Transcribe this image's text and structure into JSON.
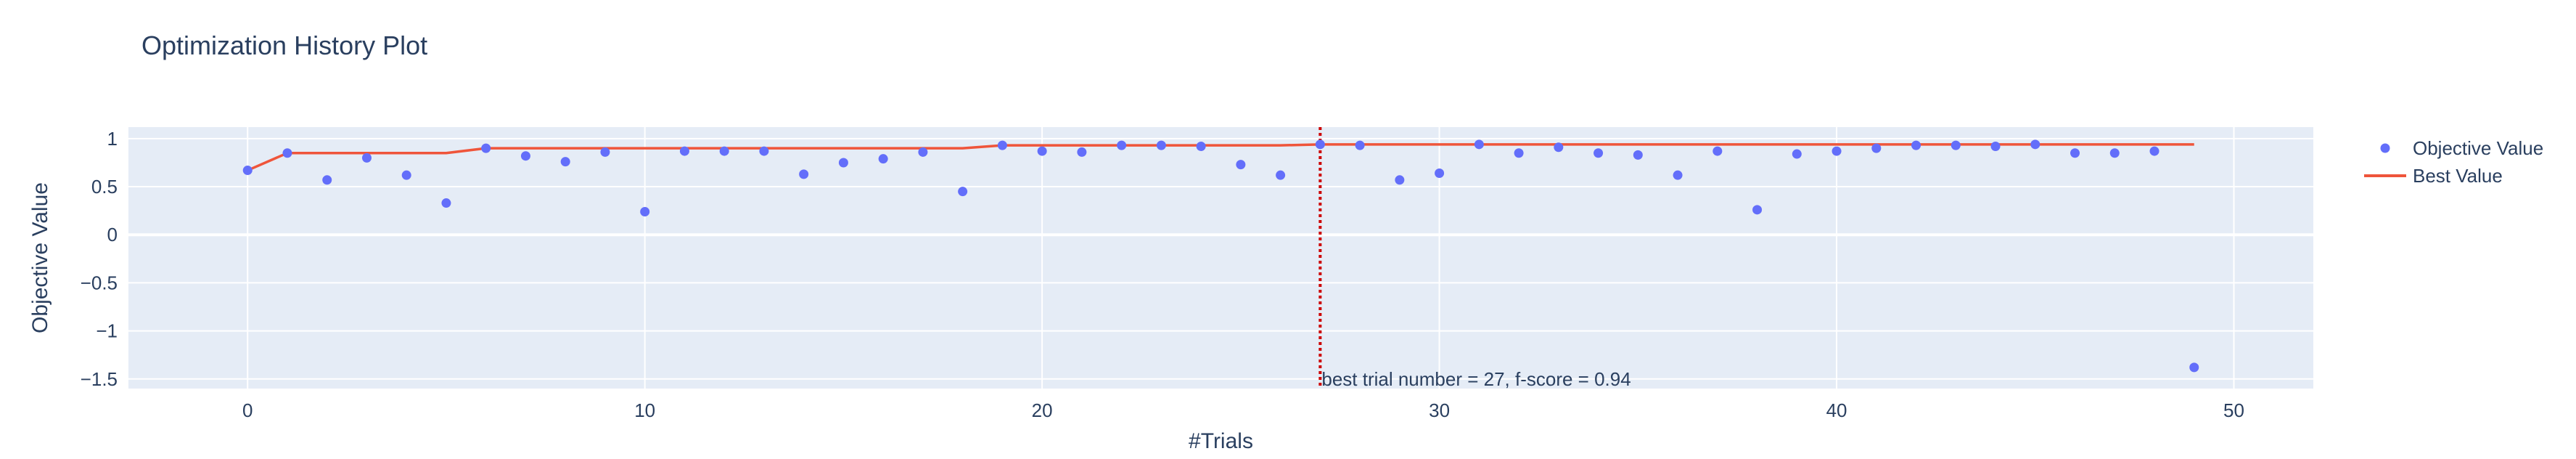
{
  "chart_data": {
    "type": "scatter",
    "title": "Optimization History Plot",
    "xlabel": "#Trials",
    "ylabel": "Objective Value",
    "xlim": [
      -3,
      52
    ],
    "ylim": [
      -1.6,
      1.12
    ],
    "xticks": [
      0,
      10,
      20,
      30,
      40,
      50
    ],
    "yticks": [
      -1.5,
      -1,
      -0.5,
      0,
      0.5,
      1
    ],
    "grid": true,
    "legend_position": "top-right",
    "series": [
      {
        "name": "Objective Value",
        "type": "scatter",
        "color": "#636efa",
        "x": [
          0,
          1,
          2,
          3,
          4,
          5,
          6,
          7,
          8,
          9,
          10,
          11,
          12,
          13,
          14,
          15,
          16,
          17,
          18,
          19,
          20,
          21,
          22,
          23,
          24,
          25,
          26,
          27,
          28,
          29,
          30,
          31,
          32,
          33,
          34,
          35,
          36,
          37,
          38,
          39,
          40,
          41,
          42,
          43,
          44,
          45,
          46,
          47,
          48,
          49
        ],
        "y": [
          0.67,
          0.85,
          0.57,
          0.8,
          0.62,
          0.33,
          0.9,
          0.82,
          0.76,
          0.86,
          0.24,
          0.87,
          0.87,
          0.87,
          0.63,
          0.75,
          0.79,
          0.86,
          0.45,
          0.93,
          0.87,
          0.86,
          0.93,
          0.93,
          0.92,
          0.73,
          0.62,
          0.94,
          0.93,
          0.57,
          0.64,
          0.94,
          0.85,
          0.91,
          0.85,
          0.83,
          0.62,
          0.87,
          0.26,
          0.84,
          0.87,
          0.9,
          0.93,
          0.93,
          0.92,
          0.94,
          0.85,
          0.85,
          0.87,
          -1.38
        ]
      },
      {
        "name": "Best Value",
        "type": "line",
        "color": "#ef553b",
        "x": [
          0,
          1,
          2,
          3,
          4,
          5,
          6,
          7,
          8,
          9,
          10,
          11,
          12,
          13,
          14,
          15,
          16,
          17,
          18,
          19,
          20,
          21,
          22,
          23,
          24,
          25,
          26,
          27,
          28,
          29,
          30,
          31,
          32,
          33,
          34,
          35,
          36,
          37,
          38,
          39,
          40,
          41,
          42,
          43,
          44,
          45,
          46,
          47,
          48,
          49
        ],
        "y": [
          0.67,
          0.85,
          0.85,
          0.85,
          0.85,
          0.85,
          0.9,
          0.9,
          0.9,
          0.9,
          0.9,
          0.9,
          0.9,
          0.9,
          0.9,
          0.9,
          0.9,
          0.9,
          0.9,
          0.93,
          0.93,
          0.93,
          0.93,
          0.93,
          0.93,
          0.93,
          0.93,
          0.94,
          0.94,
          0.94,
          0.94,
          0.94,
          0.94,
          0.94,
          0.94,
          0.94,
          0.94,
          0.94,
          0.94,
          0.94,
          0.94,
          0.94,
          0.94,
          0.94,
          0.94,
          0.94,
          0.94,
          0.94,
          0.94,
          0.94
        ]
      }
    ],
    "vline": {
      "x": 27,
      "color": "#cc0000",
      "style": "dotted"
    },
    "annotation": {
      "text": "best trial number = 27, f-score = 0.94",
      "x": 27,
      "y": -1.5
    }
  }
}
